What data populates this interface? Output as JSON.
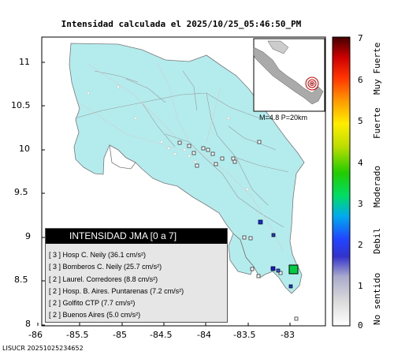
{
  "title": "Intensidad calculada el 2025/10/25_05:46:50_PM",
  "footer": "LISUCR 20251025234652",
  "y_ticks": [
    "11",
    "10.5",
    "10",
    "9.5",
    "9",
    "8.5",
    "8"
  ],
  "x_ticks": [
    "-86",
    "-85.5",
    "-85",
    "-84.5",
    "-84",
    "-83.5",
    "-83"
  ],
  "inset_note": "M=4.8 P=20km",
  "legend": {
    "header": "INTENSIDAD JMA [0 a 7]",
    "rows": [
      {
        "level": "[ 3 ]",
        "text": "Hosp C. Neily (36.1 cm/s²)"
      },
      {
        "level": "[ 3 ]",
        "text": "Bomberos C. Neily (25.7 cm/s²)"
      },
      {
        "level": "[ 2 ]",
        "text": "Laurel. Corredores (8.8 cm/s²)"
      },
      {
        "level": "[ 2 ]",
        "text": "Hosp. B. Aires. Puntarenas (7.2 cm/s²)"
      },
      {
        "level": "[ 2 ]",
        "text": "Golfito CTP (7.7 cm/s²)"
      },
      {
        "level": "[ 2 ]",
        "text": "Buenos Aires (5.0 cm/s²)"
      }
    ]
  },
  "colorbar": {
    "ticks": [
      "7",
      "6",
      "5",
      "4",
      "3",
      "2",
      "1",
      "0"
    ],
    "category_labels": [
      "Muy Fuerte",
      "Fuerte",
      "Moderado",
      "Debil",
      "No sentido"
    ]
  },
  "colors": {
    "land": "#b4ecee",
    "ocean": "#ffffff",
    "station_high": "#00cc44"
  }
}
